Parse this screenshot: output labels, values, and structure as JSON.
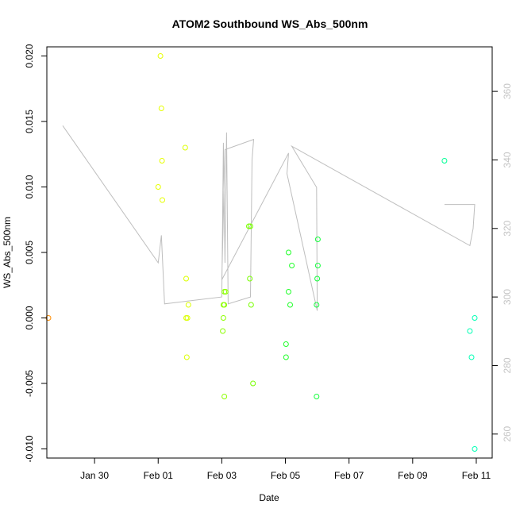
{
  "chart_data": {
    "type": "scatter",
    "title": "ATOM2 Southbound WS_Abs_500nm",
    "xlabel": "Date",
    "ylabel": "WS_Abs_500nm",
    "x_ticks": [
      "Jan 30",
      "Feb 01",
      "Feb 03",
      "Feb 05",
      "Feb 07",
      "Feb 09",
      "Feb 11"
    ],
    "x_tick_days": [
      30,
      32,
      34,
      36,
      38,
      40,
      42
    ],
    "xlim": [
      28.5,
      42.5
    ],
    "ylim": [
      -0.0107,
      0.0207
    ],
    "y_ticks": [
      -0.01,
      -0.005,
      0.0,
      0.005,
      0.01,
      0.015,
      0.02
    ],
    "y_tick_labels": [
      "-0.010",
      "-0.005",
      "0.000",
      "0.005",
      "0.010",
      "0.015",
      "0.020"
    ],
    "y2lim": [
      253,
      373
    ],
    "y2_ticks": [
      260,
      280,
      300,
      320,
      340,
      360
    ],
    "y2_tick_labels": [
      "260",
      "280",
      "300",
      "320",
      "340",
      "360"
    ],
    "grid": false,
    "line_color": "#bebebe",
    "points": [
      {
        "x": 28.55,
        "y": 0.0,
        "color": "#ff8c00"
      },
      {
        "x": 32.07,
        "y": 0.02,
        "color": "#e6ff00"
      },
      {
        "x": 32.1,
        "y": 0.016,
        "color": "#e6ff00"
      },
      {
        "x": 32.12,
        "y": 0.012,
        "color": "#e6ff00"
      },
      {
        "x": 32.0,
        "y": 0.01,
        "color": "#e6ff00"
      },
      {
        "x": 32.13,
        "y": 0.009,
        "color": "#e6ff00"
      },
      {
        "x": 32.85,
        "y": 0.013,
        "color": "#dcff00"
      },
      {
        "x": 32.88,
        "y": 0.003,
        "color": "#dcff00"
      },
      {
        "x": 32.95,
        "y": 0.001,
        "color": "#dcff00"
      },
      {
        "x": 32.92,
        "y": 0.0,
        "color": "#dcff00"
      },
      {
        "x": 32.88,
        "y": 0.0,
        "color": "#dcff00"
      },
      {
        "x": 32.9,
        "y": -0.003,
        "color": "#dcff00"
      },
      {
        "x": 34.08,
        "y": 0.002,
        "color": "#8cff00"
      },
      {
        "x": 34.12,
        "y": 0.002,
        "color": "#8cff00"
      },
      {
        "x": 34.05,
        "y": 0.001,
        "color": "#8cff00"
      },
      {
        "x": 34.08,
        "y": 0.001,
        "color": "#8cff00"
      },
      {
        "x": 34.05,
        "y": 0.0,
        "color": "#8cff00"
      },
      {
        "x": 34.03,
        "y": -0.001,
        "color": "#8cff00"
      },
      {
        "x": 34.08,
        "y": -0.006,
        "color": "#8cff00"
      },
      {
        "x": 34.85,
        "y": 0.007,
        "color": "#78ff00"
      },
      {
        "x": 34.9,
        "y": 0.007,
        "color": "#78ff00"
      },
      {
        "x": 34.88,
        "y": 0.003,
        "color": "#78ff00"
      },
      {
        "x": 34.92,
        "y": 0.001,
        "color": "#78ff00"
      },
      {
        "x": 34.98,
        "y": -0.005,
        "color": "#78ff00"
      },
      {
        "x": 36.1,
        "y": 0.005,
        "color": "#1eff28"
      },
      {
        "x": 36.2,
        "y": 0.004,
        "color": "#1eff28"
      },
      {
        "x": 36.1,
        "y": 0.002,
        "color": "#1eff28"
      },
      {
        "x": 36.15,
        "y": 0.001,
        "color": "#1eff28"
      },
      {
        "x": 36.02,
        "y": -0.002,
        "color": "#1eff28"
      },
      {
        "x": 36.02,
        "y": -0.003,
        "color": "#1eff28"
      },
      {
        "x": 37.02,
        "y": 0.006,
        "color": "#14ff3c"
      },
      {
        "x": 37.02,
        "y": 0.004,
        "color": "#14ff3c"
      },
      {
        "x": 37.0,
        "y": 0.003,
        "color": "#14ff3c"
      },
      {
        "x": 36.98,
        "y": 0.001,
        "color": "#14ff3c"
      },
      {
        "x": 36.98,
        "y": -0.006,
        "color": "#14ff3c"
      },
      {
        "x": 41.0,
        "y": 0.012,
        "color": "#00ff96"
      },
      {
        "x": 41.95,
        "y": 0.0,
        "color": "#00ffb4"
      },
      {
        "x": 41.8,
        "y": -0.001,
        "color": "#00ffb4"
      },
      {
        "x": 41.85,
        "y": -0.003,
        "color": "#00ffb4"
      },
      {
        "x": 41.95,
        "y": -0.01,
        "color": "#00ffb4"
      }
    ],
    "line_y2": [
      {
        "x": 29.0,
        "y": 350
      },
      {
        "x": 32.0,
        "y": 310
      },
      {
        "x": 32.1,
        "y": 318
      },
      {
        "x": 32.2,
        "y": 298
      },
      {
        "x": 34.0,
        "y": 300
      },
      {
        "x": 34.05,
        "y": 345
      },
      {
        "x": 34.1,
        "y": 310
      },
      {
        "x": 34.15,
        "y": 348
      },
      {
        "x": 34.2,
        "y": 298
      },
      {
        "x": 34.9,
        "y": 300
      },
      {
        "x": 34.95,
        "y": 340
      },
      {
        "x": 35.0,
        "y": 346
      },
      {
        "x": 34.1,
        "y": 343
      },
      {
        "x": 34.0,
        "y": 305
      },
      {
        "x": 36.1,
        "y": 342
      },
      {
        "x": 36.05,
        "y": 336
      },
      {
        "x": 37.0,
        "y": 296
      },
      {
        "x": 36.98,
        "y": 332
      },
      {
        "x": 36.2,
        "y": 344
      },
      {
        "x": 41.8,
        "y": 315
      },
      {
        "x": 41.9,
        "y": 320
      },
      {
        "x": 41.95,
        "y": 327
      },
      {
        "x": 41.0,
        "y": 327
      }
    ]
  }
}
